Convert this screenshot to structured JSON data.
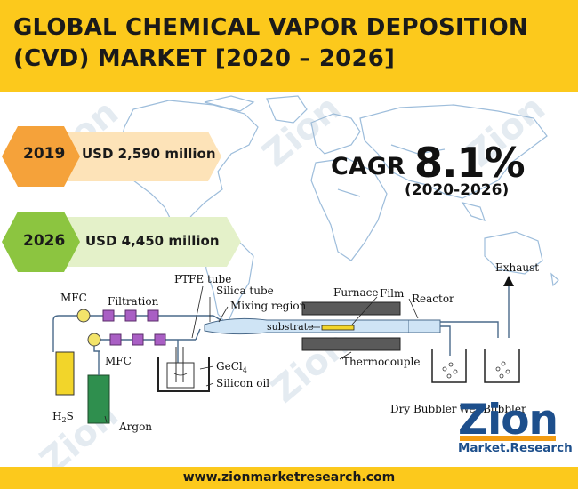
{
  "header": {
    "title_line1": "GLOBAL CHEMICAL VAPOR DEPOSITION",
    "title_line2": "(CVD) MARKET [2020 – 2026]"
  },
  "stats": [
    {
      "year": "2019",
      "value": "USD 2,590 million"
    },
    {
      "year": "2026",
      "value": "USD 4,450 million"
    }
  ],
  "cagr": {
    "label": "CAGR",
    "value": "8.1%",
    "period": "(2020-2026)"
  },
  "diagram": {
    "labels": {
      "mfc_top": "MFC",
      "filtration": "Filtration",
      "ptfe_tube": "PTFE tube",
      "silica_tube": "Silica tube",
      "mixing_region": "Mixing region",
      "mfc_bottom": "MFC",
      "gecl4": "GeCl",
      "gecl4_sub": "4",
      "silicon_oil": "Silicon oil",
      "h2s": "H",
      "h2s_sub": "2",
      "h2s_end": "S",
      "argon": "Argon",
      "furnace": "Furnace",
      "film": "Film",
      "reactor": "Reactor",
      "substrate": "substrate",
      "thermocouple": "Thermocouple",
      "dry_bubbler": "Dry Bubbler",
      "wet_bubbler": "Wet Bubbler",
      "exhaust": "Exhaust"
    },
    "colors": {
      "filter_box": "#a95fc4",
      "mfc": "#f3e46a",
      "h2s_cylinder": "#f2d52a",
      "argon_cylinder": "#2f8f4e",
      "tube": "#cfe4f5"
    }
  },
  "logo": {
    "name": "Zion",
    "sub": "Market.Research"
  },
  "footer": {
    "url": "www.zionmarketresearch.com"
  },
  "theme": {
    "accent": "#fcc91c",
    "badge_orange": "#f5a23a",
    "badge_light_orange": "#fde3b8",
    "badge_green": "#8cc540",
    "badge_light_green": "#e4f1c9",
    "map_line": "#7da7cf"
  }
}
